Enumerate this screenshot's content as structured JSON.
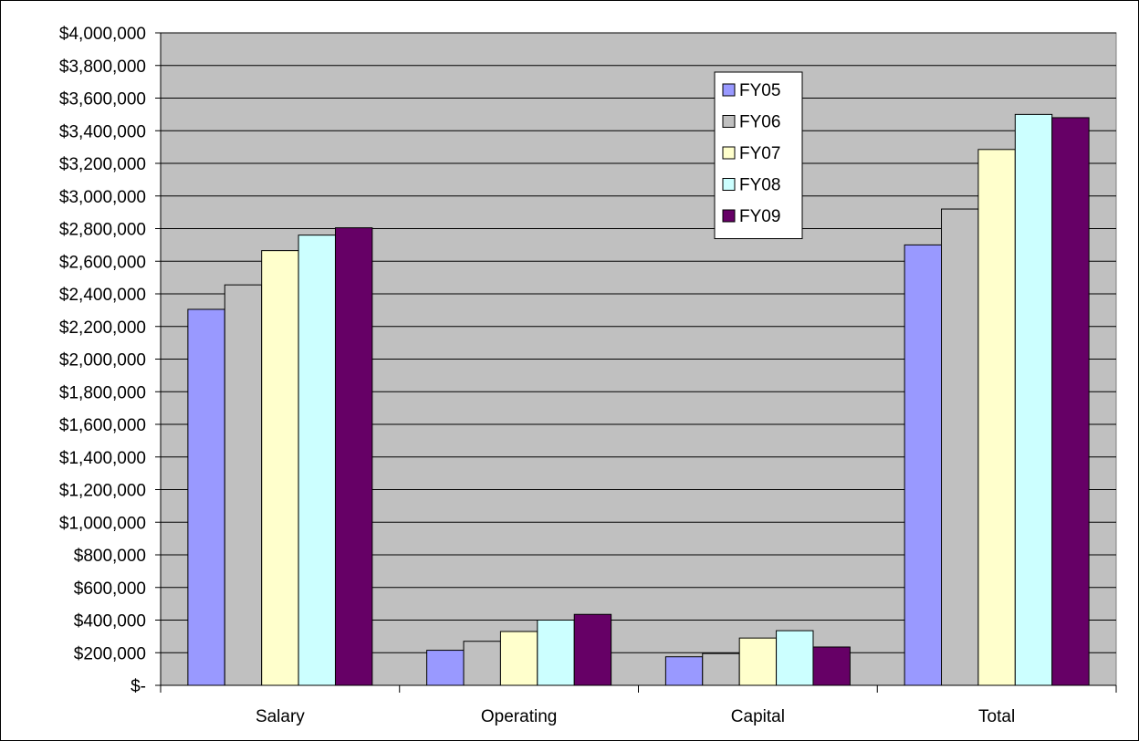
{
  "chart_data": {
    "type": "bar",
    "title": "",
    "xlabel": "",
    "ylabel": "",
    "categories": [
      "Salary",
      "Operating",
      "Capital",
      "Total"
    ],
    "series": [
      {
        "name": "FY05",
        "color": "#9999ff",
        "values": [
          2305000,
          215000,
          175000,
          2700000
        ]
      },
      {
        "name": "FY06",
        "color": "#c0c0c0",
        "values": [
          2455000,
          270000,
          195000,
          2920000
        ]
      },
      {
        "name": "FY07",
        "color": "#ffffcc",
        "values": [
          2665000,
          330000,
          290000,
          3285000
        ]
      },
      {
        "name": "FY08",
        "color": "#ccffff",
        "values": [
          2760000,
          400000,
          335000,
          3500000
        ]
      },
      {
        "name": "FY09",
        "color": "#660066",
        "values": [
          2805000,
          435000,
          235000,
          3480000
        ]
      }
    ],
    "ylim": [
      0,
      4000000
    ],
    "ytick_step": 200000,
    "y_tick_labels": [
      "$-",
      "$200,000",
      "$400,000",
      "$600,000",
      "$800,000",
      "$1,000,000",
      "$1,200,000",
      "$1,400,000",
      "$1,600,000",
      "$1,800,000",
      "$2,000,000",
      "$2,200,000",
      "$2,400,000",
      "$2,600,000",
      "$2,800,000",
      "$3,000,000",
      "$3,200,000",
      "$3,400,000",
      "$3,600,000",
      "$3,800,000",
      "$4,000,000"
    ],
    "grid": true,
    "legend_position": "top-right",
    "plot_background": "#c0c0c0"
  }
}
